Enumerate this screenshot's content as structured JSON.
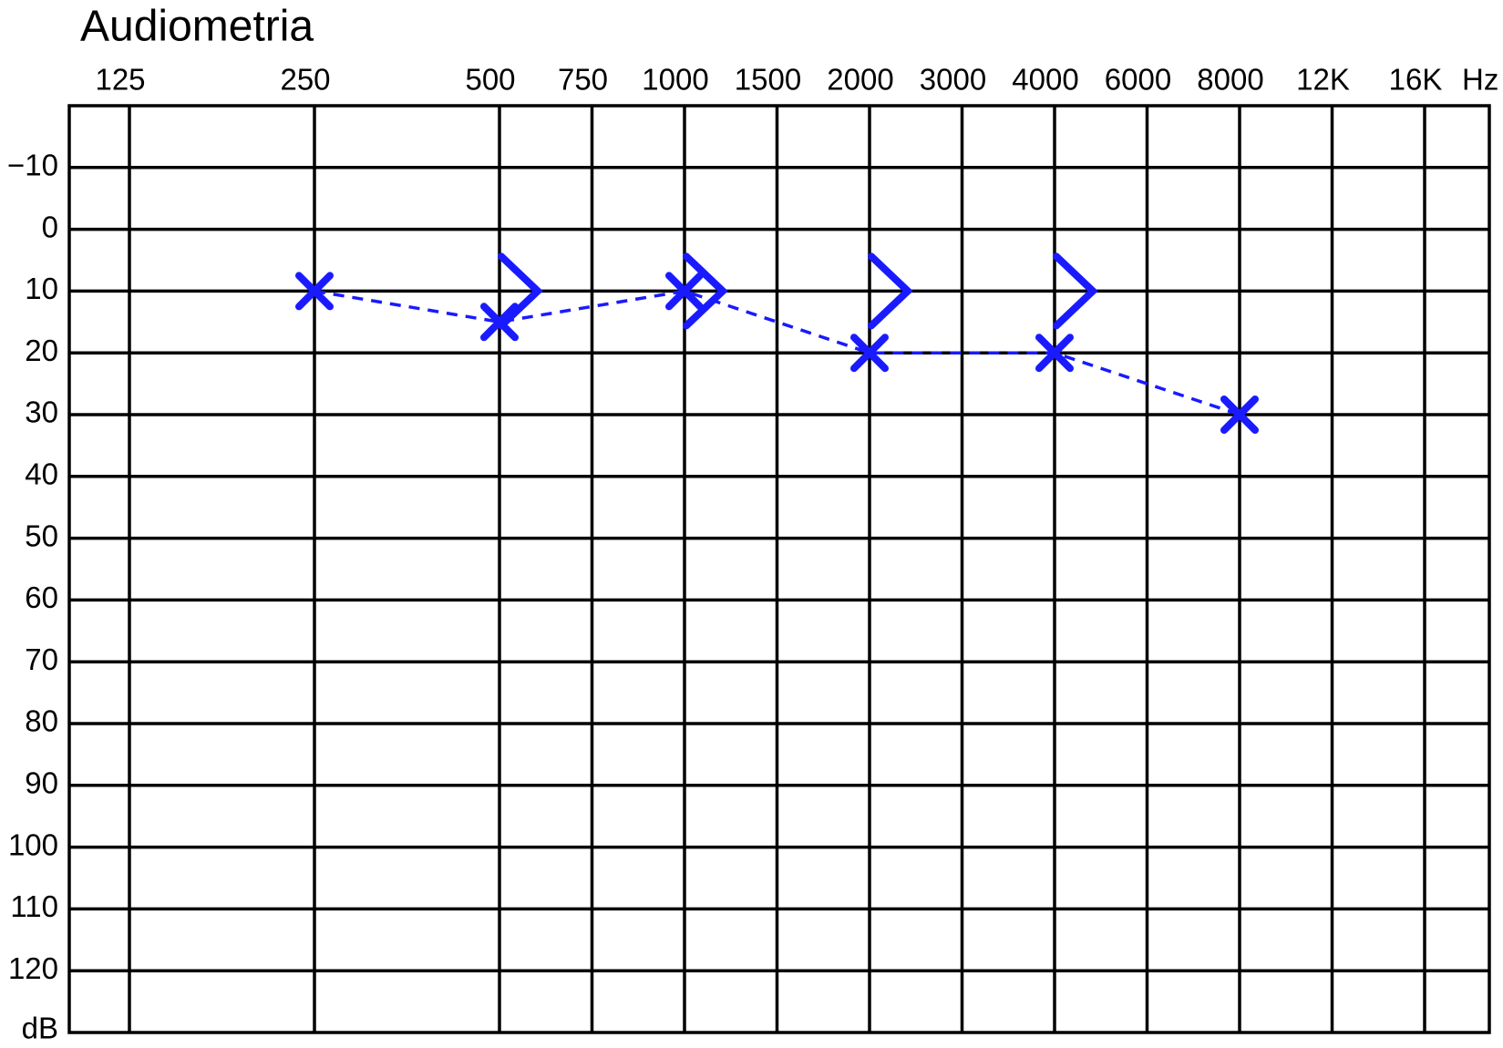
{
  "chart_data": {
    "type": "audiogram",
    "title": "Audiometria",
    "categories": [
      "125",
      "250",
      "500",
      "750",
      "1000",
      "1500",
      "2000",
      "3000",
      "4000",
      "6000",
      "8000",
      "12K",
      "16K"
    ],
    "x_unit": "Hz",
    "y_label": "dB",
    "ylim": [
      -20,
      130
    ],
    "y_inverted": true,
    "yticks": [
      {
        "value": -10,
        "label": "−10"
      },
      0,
      10,
      20,
      30,
      40,
      50,
      60,
      70,
      80,
      90,
      100,
      110,
      120
    ],
    "grid": true,
    "series": [
      {
        "marker": "x",
        "line": "dashed",
        "color": "#1a1aff",
        "x": [
          "250",
          "500",
          "1000",
          "2000",
          "4000",
          "8000"
        ],
        "values": [
          10,
          15,
          10,
          20,
          20,
          30
        ]
      },
      {
        "marker": ">",
        "color": "#1a1aff",
        "x": [
          "500",
          "1000",
          "2000",
          "4000"
        ],
        "values": [
          10,
          10,
          10,
          10
        ]
      }
    ]
  }
}
